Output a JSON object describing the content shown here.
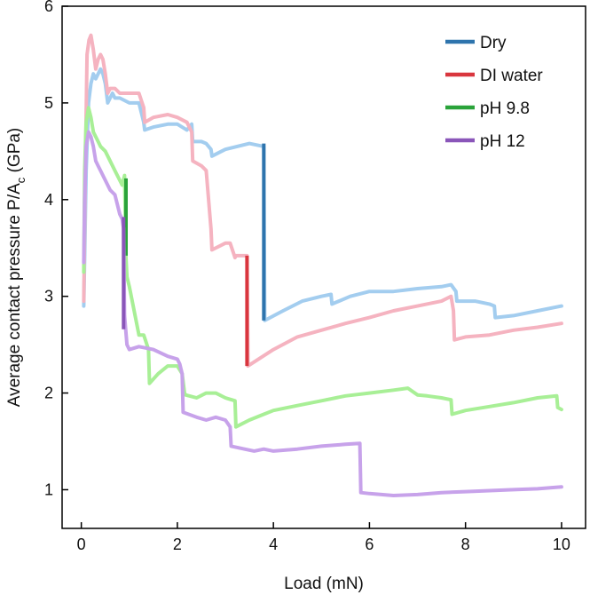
{
  "chart_data": {
    "type": "line",
    "title": "",
    "xlabel": "Load (mN)",
    "ylabel_main": "Average contact pressure P/A",
    "ylabel_sub": "c",
    "ylabel_unit": " (GPa)",
    "xlim": [
      -0.4,
      10.5
    ],
    "ylim": [
      0.6,
      6.0
    ],
    "x_ticks": [
      0,
      2,
      4,
      6,
      8,
      10
    ],
    "y_ticks": [
      1,
      2,
      3,
      4,
      5,
      6
    ],
    "grid": false,
    "legend_position": "top-right",
    "series": [
      {
        "name": "Dry",
        "color": "#a3cdef",
        "highlight_color": "#2e74ad",
        "highlight_x": 3.8,
        "highlight_y": [
          2.75,
          4.58
        ],
        "x": [
          0.05,
          0.07,
          0.1,
          0.15,
          0.2,
          0.25,
          0.3,
          0.35,
          0.4,
          0.45,
          0.5,
          0.55,
          0.6,
          0.65,
          0.7,
          0.8,
          1.0,
          1.2,
          1.3,
          1.32,
          1.5,
          1.8,
          2.0,
          2.2,
          2.3,
          2.32,
          2.5,
          2.6,
          2.7,
          2.72,
          3.0,
          3.5,
          3.8,
          3.82,
          4.2,
          4.6,
          5.0,
          5.2,
          5.22,
          5.6,
          6.0,
          6.5,
          7.0,
          7.5,
          7.7,
          7.8,
          7.82,
          8.2,
          8.5,
          8.6,
          8.62,
          9.0,
          9.5,
          10.0
        ],
        "y": [
          2.9,
          3.4,
          4.3,
          5.0,
          5.2,
          5.3,
          5.25,
          5.3,
          5.35,
          5.3,
          5.2,
          5.0,
          5.05,
          5.1,
          5.05,
          5.05,
          5.0,
          5.0,
          4.8,
          4.72,
          4.75,
          4.78,
          4.78,
          4.72,
          4.78,
          4.6,
          4.6,
          4.58,
          4.52,
          4.45,
          4.52,
          4.58,
          4.55,
          2.75,
          2.85,
          2.95,
          3.0,
          3.02,
          2.92,
          3.0,
          3.05,
          3.05,
          3.08,
          3.1,
          3.12,
          3.05,
          2.95,
          2.95,
          2.92,
          2.9,
          2.78,
          2.8,
          2.85,
          2.9
        ]
      },
      {
        "name": "DI water",
        "color": "#f5b3c0",
        "highlight_color": "#d9363e",
        "highlight_x": 3.45,
        "highlight_y": [
          2.28,
          3.42
        ],
        "x": [
          0.05,
          0.08,
          0.12,
          0.16,
          0.2,
          0.25,
          0.3,
          0.35,
          0.4,
          0.45,
          0.5,
          0.55,
          0.6,
          0.7,
          0.8,
          1.0,
          1.2,
          1.3,
          1.32,
          1.5,
          1.8,
          2.0,
          2.2,
          2.3,
          2.32,
          2.5,
          2.6,
          2.7,
          2.72,
          3.0,
          3.1,
          3.2,
          3.22,
          3.45,
          3.47,
          4.0,
          4.5,
          5.0,
          5.5,
          6.0,
          6.5,
          7.0,
          7.5,
          7.7,
          7.75,
          7.77,
          8.0,
          8.5,
          9.0,
          9.5,
          10.0
        ],
        "y": [
          2.95,
          4.2,
          5.5,
          5.65,
          5.7,
          5.55,
          5.35,
          5.45,
          5.5,
          5.45,
          5.3,
          5.1,
          5.15,
          5.15,
          5.1,
          5.1,
          5.1,
          4.95,
          4.8,
          4.85,
          4.88,
          4.85,
          4.8,
          4.7,
          4.4,
          4.35,
          4.3,
          3.7,
          3.48,
          3.55,
          3.55,
          3.4,
          3.42,
          3.42,
          2.28,
          2.45,
          2.58,
          2.65,
          2.72,
          2.78,
          2.85,
          2.9,
          2.95,
          3.0,
          2.85,
          2.55,
          2.58,
          2.6,
          2.65,
          2.68,
          2.72
        ]
      },
      {
        "name": "pH 9.8",
        "color": "#a8ef96",
        "highlight_color": "#2aa33a",
        "highlight_x": 0.93,
        "highlight_y": [
          3.42,
          4.22
        ],
        "x": [
          0.05,
          0.07,
          0.1,
          0.15,
          0.2,
          0.25,
          0.3,
          0.35,
          0.4,
          0.5,
          0.6,
          0.7,
          0.8,
          0.85,
          0.9,
          0.93,
          0.95,
          1.0,
          1.1,
          1.2,
          1.3,
          1.4,
          1.42,
          1.6,
          1.8,
          2.0,
          2.1,
          2.15,
          2.17,
          2.4,
          2.6,
          2.8,
          3.0,
          3.2,
          3.22,
          3.5,
          3.8,
          4.0,
          4.5,
          5.0,
          5.5,
          6.0,
          6.5,
          6.8,
          7.0,
          7.2,
          7.5,
          7.7,
          7.72,
          8.0,
          8.5,
          9.0,
          9.5,
          9.9,
          9.92,
          10.0
        ],
        "y": [
          3.25,
          4.3,
          4.8,
          4.95,
          4.85,
          4.7,
          4.65,
          4.6,
          4.55,
          4.5,
          4.4,
          4.3,
          4.2,
          4.15,
          4.25,
          3.4,
          3.2,
          3.1,
          2.85,
          2.6,
          2.6,
          2.45,
          2.1,
          2.2,
          2.28,
          2.28,
          2.2,
          2.0,
          1.98,
          1.95,
          2.0,
          2.0,
          1.95,
          1.92,
          1.65,
          1.72,
          1.78,
          1.82,
          1.87,
          1.92,
          1.97,
          2.0,
          2.03,
          2.05,
          1.98,
          1.97,
          1.95,
          1.93,
          1.78,
          1.82,
          1.86,
          1.9,
          1.95,
          1.97,
          1.85,
          1.83
        ]
      },
      {
        "name": "pH 12",
        "color": "#c7a2ea",
        "highlight_color": "#8a56b9",
        "highlight_x": 0.88,
        "highlight_y": [
          2.66,
          3.82
        ],
        "x": [
          0.05,
          0.07,
          0.1,
          0.15,
          0.2,
          0.25,
          0.3,
          0.35,
          0.4,
          0.5,
          0.6,
          0.7,
          0.8,
          0.85,
          0.88,
          0.9,
          0.95,
          1.0,
          1.2,
          1.5,
          1.8,
          2.0,
          2.05,
          2.1,
          2.12,
          2.4,
          2.6,
          2.8,
          3.0,
          3.1,
          3.12,
          3.4,
          3.6,
          3.8,
          4.0,
          4.5,
          5.0,
          5.5,
          5.8,
          5.82,
          6.0,
          6.5,
          7.0,
          7.5,
          8.0,
          8.5,
          9.0,
          9.5,
          10.0
        ],
        "y": [
          3.35,
          4.0,
          4.55,
          4.7,
          4.65,
          4.55,
          4.4,
          4.35,
          4.3,
          4.2,
          4.1,
          4.05,
          3.85,
          3.8,
          3.7,
          2.8,
          2.5,
          2.45,
          2.48,
          2.45,
          2.38,
          2.35,
          2.3,
          2.2,
          1.8,
          1.75,
          1.72,
          1.75,
          1.72,
          1.65,
          1.45,
          1.42,
          1.4,
          1.42,
          1.4,
          1.42,
          1.45,
          1.47,
          1.48,
          0.97,
          0.96,
          0.94,
          0.95,
          0.97,
          0.98,
          0.99,
          1.0,
          1.01,
          1.03
        ]
      }
    ]
  }
}
